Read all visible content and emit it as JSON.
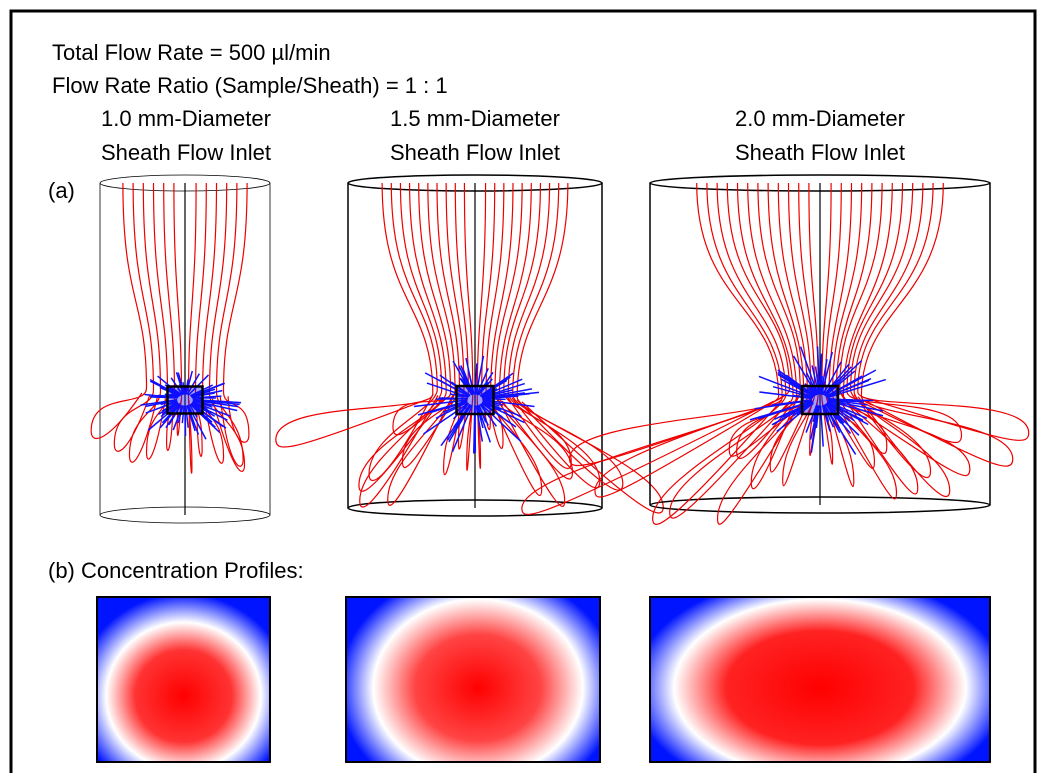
{
  "header": {
    "line1": "Total Flow Rate = 500 µl/min",
    "line2": "Flow Rate Ratio (Sample/Sheath) = 1 : 1"
  },
  "panel_a": {
    "label": "(a)",
    "columns": [
      {
        "line1": "1.0 mm-Diameter",
        "line2": "Sheath Flow Inlet"
      },
      {
        "line1": "1.5 mm-Diameter",
        "line2": "Sheath Flow Inlet"
      },
      {
        "line1": "2.0 mm-Diameter",
        "line2": "Sheath Flow Inlet"
      }
    ]
  },
  "panel_b": {
    "label": "(b) Concentration Profiles:"
  }
}
